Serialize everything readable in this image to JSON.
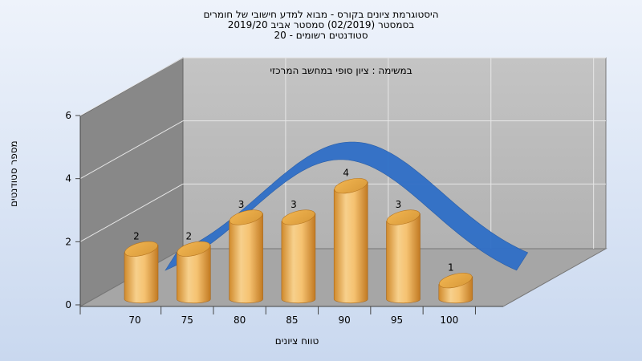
{
  "header": {
    "title_line1": "היסטוגרמת ציונים בקורס - מבוא למדע חישובי של חומרים",
    "title_line2": "בסמסטר  (02/2019)  סמסטר אביב 2019/20",
    "title_line3": "סטודנטים רשומים - 20"
  },
  "chart_data": {
    "type": "bar",
    "subtitle": "במשימה : ציון סופי במחשב המרכזי",
    "xlabel": "טווח ציונים",
    "ylabel": "מספר סטודנטים",
    "categories": [
      "70",
      "75",
      "80",
      "85",
      "90",
      "95",
      "100"
    ],
    "values": [
      2,
      2,
      3,
      3,
      4,
      3,
      1
    ],
    "ylim": [
      0,
      6
    ],
    "yticks": [
      "0",
      "2",
      "4",
      "6"
    ],
    "grid": true,
    "curve": true,
    "colors": {
      "bar": "#f2b55a",
      "bar_dark": "#c9842a",
      "curve": "#2f6fc7",
      "wall": "#b8b8b8",
      "side_wall": "#8a8a8a"
    }
  }
}
